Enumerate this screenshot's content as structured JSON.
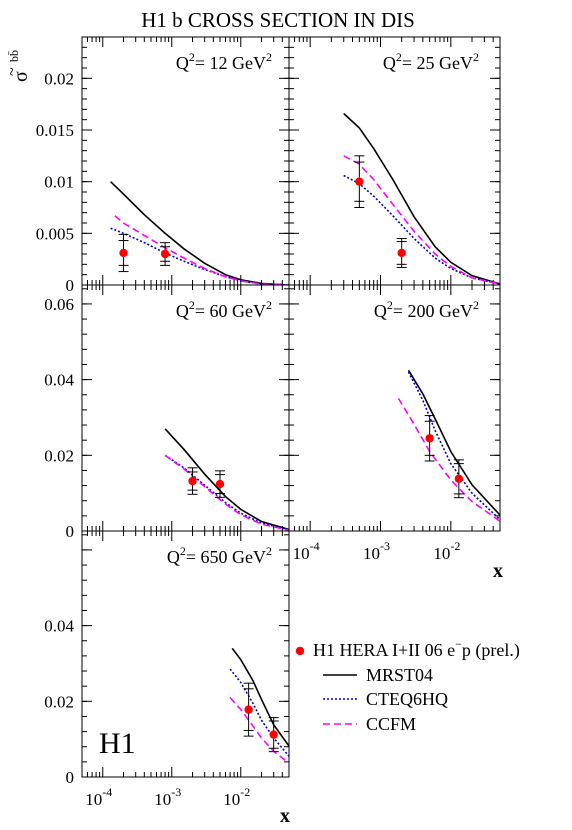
{
  "title": "H1 b  CROSS SECTION IN DIS",
  "ylabel_main": "σ",
  "ylabel_sup": "bb̄",
  "ylabel_tilde": "~",
  "xlabel": "x",
  "experiment_logo": "H1",
  "colors": {
    "data": "#ff0000",
    "MRST04": "#000000",
    "CTEQ6HQ": "#0000cc",
    "CCFM": "#ff00ff"
  },
  "legend": {
    "position": "right, below panels",
    "entries": [
      {
        "key": "data",
        "label": "H1 HERA I+II 06 e",
        "sup": "−",
        "suffix": "p (prel.)"
      },
      {
        "key": "MRST04",
        "label": "MRST04"
      },
      {
        "key": "CTEQ6HQ",
        "label": "CTEQ6HQ"
      },
      {
        "key": "CCFM",
        "label": "CCFM"
      }
    ]
  },
  "chart_data": [
    {
      "type": "scatter",
      "q2_label": "Q",
      "q2_value": "= 12 GeV",
      "xscale": "log",
      "xlim": [
        5e-05,
        0.05
      ],
      "ylim": [
        0,
        0.024
      ],
      "yticks": [
        0,
        0.005,
        0.01,
        0.015,
        0.02
      ],
      "ytick_labels": [
        "0",
        "0.005",
        "0.01",
        "0.015",
        "0.02"
      ],
      "data": {
        "x": [
          0.0002,
          0.0008
        ],
        "y": [
          0.0031,
          0.003
        ],
        "err_stat": [
          0.0012,
          0.0007
        ],
        "err_tot": [
          0.0018,
          0.0011
        ]
      },
      "series": [
        {
          "name": "MRST04",
          "x": [
            0.00013,
            0.0002,
            0.0004,
            0.0008,
            0.0015,
            0.003,
            0.006,
            0.01,
            0.02,
            0.05
          ],
          "y": [
            0.01,
            0.0088,
            0.0068,
            0.005,
            0.0035,
            0.0021,
            0.001,
            0.0005,
            0.00015,
            0
          ]
        },
        {
          "name": "CTEQ6HQ",
          "x": [
            0.00013,
            0.0002,
            0.0004,
            0.0008,
            0.0015,
            0.003,
            0.006,
            0.01,
            0.02,
            0.05
          ],
          "y": [
            0.0055,
            0.005,
            0.0041,
            0.0031,
            0.0023,
            0.0015,
            0.0008,
            0.0004,
            0.0001,
            0
          ]
        },
        {
          "name": "CCFM",
          "x": [
            0.00015,
            0.0002,
            0.0004,
            0.0008,
            0.0015,
            0.003,
            0.006,
            0.01,
            0.02,
            0.05
          ],
          "y": [
            0.0067,
            0.006,
            0.0048,
            0.0036,
            0.0026,
            0.0016,
            0.0008,
            0.0004,
            0.0001,
            0
          ]
        }
      ]
    },
    {
      "type": "scatter",
      "q2_label": "Q",
      "q2_value": "= 25 GeV",
      "xscale": "log",
      "xlim": [
        5e-05,
        0.05
      ],
      "ylim": [
        0,
        0.024
      ],
      "yticks": [
        0,
        0.005,
        0.01,
        0.015,
        0.02
      ],
      "ytick_labels": [],
      "data": {
        "x": [
          0.0005,
          0.002
        ],
        "y": [
          0.01,
          0.0031
        ],
        "err_stat": [
          0.0019,
          0.0011
        ],
        "err_tot": [
          0.0025,
          0.0014
        ]
      },
      "series": [
        {
          "name": "MRST04",
          "x": [
            0.0003,
            0.0005,
            0.0008,
            0.0015,
            0.003,
            0.006,
            0.01,
            0.02,
            0.05
          ],
          "y": [
            0.0166,
            0.0152,
            0.0132,
            0.0102,
            0.0066,
            0.0037,
            0.0022,
            0.0009,
            0.0001
          ]
        },
        {
          "name": "CTEQ6HQ",
          "x": [
            0.0003,
            0.0005,
            0.0008,
            0.0015,
            0.003,
            0.006,
            0.01,
            0.02,
            0.05
          ],
          "y": [
            0.0106,
            0.0098,
            0.0086,
            0.0067,
            0.0045,
            0.0026,
            0.0016,
            0.0007,
            0.0001
          ]
        },
        {
          "name": "CCFM",
          "x": [
            0.0003,
            0.0005,
            0.0008,
            0.0015,
            0.003,
            0.006,
            0.01,
            0.02,
            0.05
          ],
          "y": [
            0.0125,
            0.0117,
            0.0102,
            0.0078,
            0.0052,
            0.003,
            0.0018,
            0.0007,
            0.0001
          ]
        }
      ]
    },
    {
      "type": "scatter",
      "q2_label": "Q",
      "q2_value": "= 60 GeV",
      "xscale": "log",
      "xlim": [
        5e-05,
        0.05
      ],
      "ylim": [
        0,
        0.065
      ],
      "yticks": [
        0,
        0.02,
        0.04,
        0.06
      ],
      "ytick_labels": [
        "0",
        "0.02",
        "0.04",
        "0.06"
      ],
      "data": {
        "x": [
          0.002,
          0.005
        ],
        "y": [
          0.0132,
          0.0124
        ],
        "err_stat": [
          0.0024,
          0.0025
        ],
        "err_tot": [
          0.0035,
          0.0035
        ]
      },
      "series": [
        {
          "name": "MRST04",
          "x": [
            0.0008,
            0.0015,
            0.003,
            0.006,
            0.01,
            0.02,
            0.05
          ],
          "y": [
            0.027,
            0.0216,
            0.015,
            0.0091,
            0.0057,
            0.0025,
            0.0004
          ]
        },
        {
          "name": "CTEQ6HQ",
          "x": [
            0.0008,
            0.0015,
            0.003,
            0.006,
            0.01,
            0.02,
            0.05
          ],
          "y": [
            0.02,
            0.0167,
            0.0121,
            0.0075,
            0.0047,
            0.0021,
            0.0003
          ]
        },
        {
          "name": "CCFM",
          "x": [
            0.0008,
            0.0015,
            0.003,
            0.006,
            0.01,
            0.02,
            0.05
          ],
          "y": [
            0.02,
            0.0164,
            0.0117,
            0.0071,
            0.0043,
            0.0018,
            0.0002
          ]
        }
      ]
    },
    {
      "type": "scatter",
      "q2_label": "Q",
      "q2_value": "= 200 GeV",
      "xscale": "log",
      "xlim": [
        5e-05,
        0.05
      ],
      "ylim": [
        0,
        0.065
      ],
      "yticks": [
        0,
        0.02,
        0.04,
        0.06
      ],
      "ytick_labels": [],
      "data": {
        "x": [
          0.005,
          0.013
        ],
        "y": [
          0.0245,
          0.0138
        ],
        "err_stat": [
          0.0045,
          0.004
        ],
        "err_tot": [
          0.006,
          0.005
        ]
      },
      "series": [
        {
          "name": "MRST04",
          "x": [
            0.0025,
            0.004,
            0.006,
            0.01,
            0.02,
            0.05
          ],
          "y": [
            0.0425,
            0.0362,
            0.0296,
            0.021,
            0.0122,
            0.0042
          ]
        },
        {
          "name": "CTEQ6HQ",
          "x": [
            0.0025,
            0.004,
            0.006,
            0.01,
            0.02,
            0.05
          ],
          "y": [
            0.042,
            0.0345,
            0.0265,
            0.0178,
            0.01,
            0.003
          ]
        },
        {
          "name": "CCFM",
          "x": [
            0.0018,
            0.003,
            0.005,
            0.01,
            0.02,
            0.05
          ],
          "y": [
            0.035,
            0.0282,
            0.021,
            0.0135,
            0.0078,
            0.0026
          ]
        }
      ]
    },
    {
      "type": "scatter",
      "q2_label": "Q",
      "q2_value": "= 650 GeV",
      "xscale": "log",
      "xlim": [
        5e-05,
        0.05
      ],
      "ylim": [
        0,
        0.065
      ],
      "yticks": [
        0,
        0.02,
        0.04,
        0.06
      ],
      "ytick_labels": [
        "0",
        "0.02",
        "0.04",
        ""
      ],
      "xtick_labels": [
        {
          "x": 0.0001,
          "label": "10",
          "exp": "-4"
        },
        {
          "x": 0.001,
          "label": "10",
          "exp": "-3"
        },
        {
          "x": 0.01,
          "label": "10",
          "exp": "-2"
        }
      ],
      "data": {
        "x": [
          0.013,
          0.03
        ],
        "y": [
          0.0178,
          0.0112
        ],
        "err_stat": [
          0.0055,
          0.0036
        ],
        "err_tot": [
          0.007,
          0.0045
        ]
      },
      "series": [
        {
          "name": "MRST04",
          "x": [
            0.0075,
            0.01,
            0.015,
            0.02,
            0.03,
            0.05
          ],
          "y": [
            0.034,
            0.031,
            0.0255,
            0.0205,
            0.0138,
            0.0082
          ]
        },
        {
          "name": "CTEQ6HQ",
          "x": [
            0.007,
            0.01,
            0.015,
            0.02,
            0.03,
            0.05
          ],
          "y": [
            0.0285,
            0.025,
            0.0195,
            0.015,
            0.0103,
            0.0055
          ]
        },
        {
          "name": "CCFM",
          "x": [
            0.007,
            0.01,
            0.015,
            0.02,
            0.03,
            0.05
          ],
          "y": [
            0.021,
            0.0178,
            0.0135,
            0.0103,
            0.0068,
            0.0037
          ]
        }
      ]
    }
  ],
  "right_xtick_labels": [
    {
      "x": 0.0001,
      "label": "10",
      "exp": "-4"
    },
    {
      "x": 0.001,
      "label": "10",
      "exp": "-3"
    },
    {
      "x": 0.01,
      "label": "10",
      "exp": "-2"
    }
  ]
}
